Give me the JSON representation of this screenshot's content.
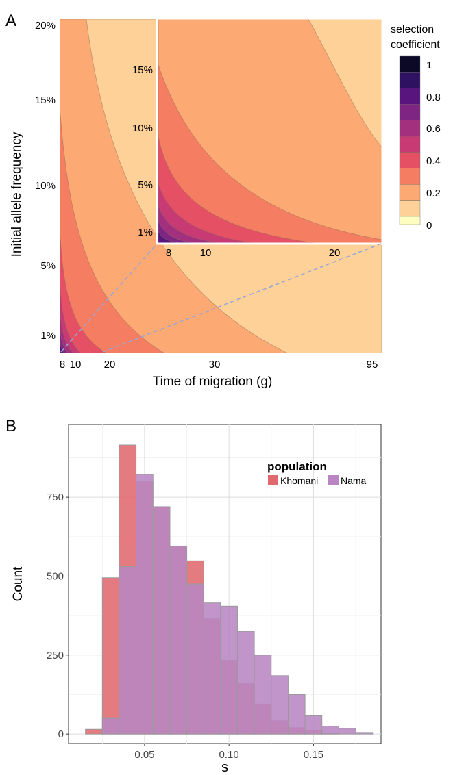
{
  "chart_data": [
    {
      "panel_label": "A",
      "type": "contour",
      "xlabel": "Time of migration (g)",
      "ylabel": "Initial allele frequency",
      "x_ticks": [
        "8",
        "10",
        "20",
        "30",
        "95"
      ],
      "y_ticks": [
        "1%",
        "5%",
        "10%",
        "15%",
        "20%"
      ],
      "legend": {
        "title_lines": [
          "selection",
          "coefficient"
        ],
        "ticks": [
          "1",
          "0.8",
          "0.6",
          "0.4",
          "0.2",
          "0"
        ],
        "levels": [
          0,
          0.1,
          0.2,
          0.3,
          0.4,
          0.5,
          0.6,
          0.7,
          0.8,
          0.9,
          1.0
        ],
        "colors": [
          "#fcfdbf",
          "#fdd197",
          "#fca973",
          "#f57d61",
          "#e55064",
          "#c73a73",
          "#a3307e",
          "#7e2482",
          "#58157d",
          "#2e1161",
          "#0c0927"
        ]
      },
      "inset": {
        "x_ticks": [
          "8",
          "10",
          "20"
        ],
        "y_ticks": [
          "1%",
          "5%",
          "10%",
          "15%"
        ]
      }
    },
    {
      "panel_label": "B",
      "type": "histogram",
      "xlabel": "s",
      "ylabel": "Count",
      "xlim": [
        0.005,
        0.19
      ],
      "ylim": [
        -30,
        980
      ],
      "x_ticks": [
        0.05,
        0.1,
        0.15
      ],
      "x_tick_labels": [
        "0.05",
        "0.10",
        "0.15"
      ],
      "y_ticks": [
        0,
        250,
        500,
        750
      ],
      "y_tick_labels": [
        "0",
        "250",
        "500",
        "750"
      ],
      "bin_width": 0.01,
      "bin_starts": [
        0.015,
        0.025,
        0.035,
        0.045,
        0.055,
        0.065,
        0.075,
        0.085,
        0.095,
        0.105,
        0.115,
        0.125,
        0.135,
        0.145,
        0.155,
        0.165,
        0.175
      ],
      "legend": {
        "title": "population",
        "position": "top-right"
      },
      "series": [
        {
          "name": "Khomani",
          "color": "#e0696e",
          "values": [
            15,
            495,
            915,
            800,
            720,
            595,
            548,
            365,
            233,
            160,
            95,
            42,
            20,
            12,
            2,
            0,
            0
          ]
        },
        {
          "name": "Nama",
          "color": "#b886c3",
          "values": [
            0,
            50,
            530,
            822,
            720,
            595,
            475,
            415,
            405,
            325,
            250,
            185,
            125,
            58,
            25,
            18,
            5
          ]
        }
      ]
    }
  ]
}
